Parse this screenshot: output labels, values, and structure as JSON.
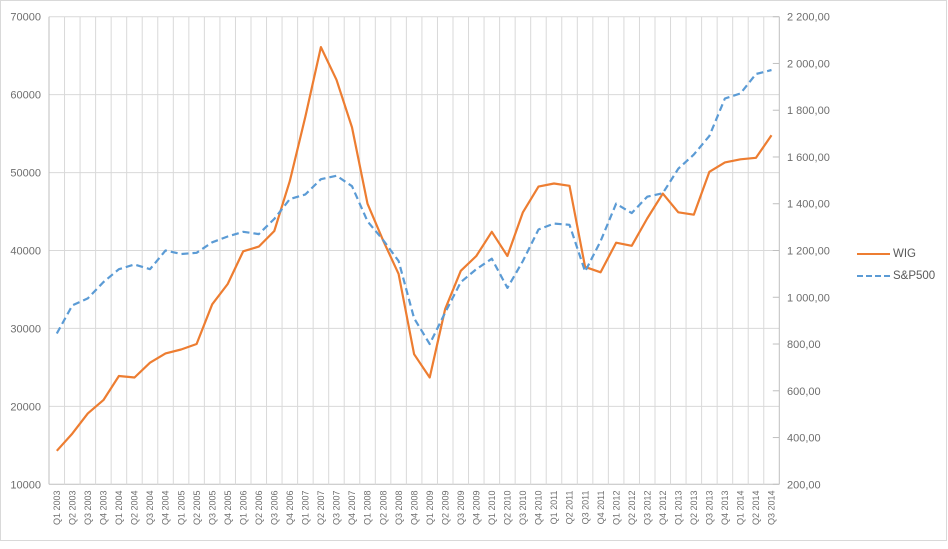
{
  "chart_data": {
    "type": "line",
    "title": "",
    "categories": [
      "Q1 2003",
      "Q2 2003",
      "Q3 2003",
      "Q4 2003",
      "Q1 2004",
      "Q2 2004",
      "Q3 2004",
      "Q4 2004",
      "Q1 2005",
      "Q2 2005",
      "Q3 2005",
      "Q4 2005",
      "Q1 2006",
      "Q2 2006",
      "Q3 2006",
      "Q4 2006",
      "Q1 2007",
      "Q2 2007",
      "Q3 2007",
      "Q4 2007",
      "Q1 2008",
      "Q2 2008",
      "Q3 2008",
      "Q4 2008",
      "Q1 2009",
      "Q2 2009",
      "Q3 2009",
      "Q4 2009",
      "Q1 2010",
      "Q2 2010",
      "Q3 2010",
      "Q4 2010",
      "Q1 2011",
      "Q2 2011",
      "Q3 2011",
      "Q4 2011",
      "Q1 2012",
      "Q2 2012",
      "Q3 2012",
      "Q4 2012",
      "Q1 2013",
      "Q2 2013",
      "Q3 2013",
      "Q4 2013",
      "Q1 2014",
      "Q2 2014",
      "Q3 2014"
    ],
    "series": [
      {
        "name": "WIG",
        "axis": "left",
        "color": "#ED7D31",
        "style": "solid",
        "values": [
          14300,
          16500,
          19100,
          20800,
          23900,
          23700,
          25600,
          26800,
          27300,
          28000,
          33100,
          35700,
          39900,
          40500,
          42500,
          48900,
          57200,
          66100,
          61900,
          55800,
          46000,
          41300,
          37000,
          26700,
          23700,
          32500,
          37400,
          39300,
          42400,
          39300,
          44900,
          48200,
          48600,
          48300,
          37900,
          37200,
          41000,
          40600,
          44100,
          47300,
          44900,
          44600,
          50100,
          51300,
          51700,
          51900,
          54800
        ]
      },
      {
        "name": "S&P500",
        "axis": "right",
        "color": "#5B9BD5",
        "style": "dashed",
        "values": [
          845,
          965,
          995,
          1065,
          1120,
          1140,
          1120,
          1200,
          1185,
          1190,
          1235,
          1260,
          1280,
          1270,
          1335,
          1420,
          1440,
          1505,
          1520,
          1475,
          1325,
          1245,
          1155,
          910,
          800,
          935,
          1065,
          1120,
          1165,
          1040,
          1155,
          1290,
          1315,
          1310,
          1110,
          1240,
          1400,
          1360,
          1430,
          1445,
          1550,
          1610,
          1690,
          1850,
          1872,
          1955,
          1972
        ]
      }
    ],
    "left_axis": {
      "min": 10000,
      "max": 70000,
      "step": 10000,
      "labels_top_to_bottom": [
        "70000",
        "60000",
        "50000",
        "40000",
        "30000",
        "20000",
        "10000"
      ]
    },
    "right_axis": {
      "min": 200,
      "max": 2200,
      "step": 200,
      "labels_top_to_bottom": [
        "2 200,00",
        "2 000,00",
        "1 800,00",
        "1 600,00",
        "1 400,00",
        "1 200,00",
        "1 000,00",
        "800,00",
        "600,00",
        "400,00",
        "200,00"
      ]
    },
    "legend": {
      "position": "right",
      "entries": [
        "WIG",
        "S&P500"
      ]
    },
    "grid": true
  },
  "colors": {
    "wig_line": "#ED7D31",
    "sp500_line": "#5B9BD5",
    "gridline": "#D9D9D9",
    "axis_line": "#BFBFBF",
    "axis_label_text": "#6E6E6E",
    "legend_text": "#595959",
    "background": "#FFFFFF",
    "frame_border": "#D9D9D9"
  }
}
